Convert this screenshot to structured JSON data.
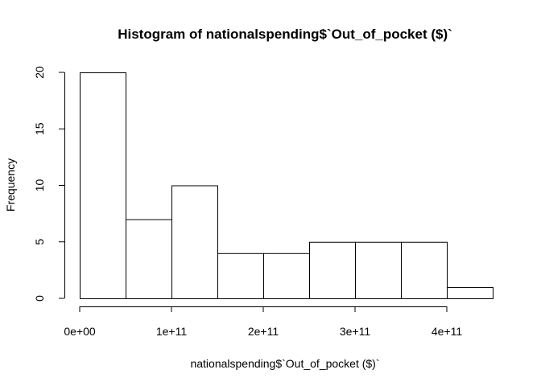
{
  "chart_data": {
    "type": "bar",
    "title": "Histogram of nationalspending$`Out_of_pocket ($)`",
    "xlabel": "nationalspending$`Out_of_pocket ($)`",
    "ylabel": "Frequency",
    "bins": [
      {
        "start": 0,
        "end": 50000000000,
        "count": 20
      },
      {
        "start": 50000000000,
        "end": 100000000000,
        "count": 7
      },
      {
        "start": 100000000000,
        "end": 150000000000,
        "count": 10
      },
      {
        "start": 150000000000,
        "end": 200000000000,
        "count": 4
      },
      {
        "start": 200000000000,
        "end": 250000000000,
        "count": 4
      },
      {
        "start": 250000000000,
        "end": 300000000000,
        "count": 5
      },
      {
        "start": 300000000000,
        "end": 350000000000,
        "count": 5
      },
      {
        "start": 350000000000,
        "end": 400000000000,
        "count": 5
      },
      {
        "start": 400000000000,
        "end": 450000000000,
        "count": 1
      }
    ],
    "xlim": [
      0,
      450000000000
    ],
    "ylim": [
      0,
      20
    ],
    "x_ticks": [
      {
        "value": 0,
        "label": "0e+00"
      },
      {
        "value": 100000000000,
        "label": "1e+11"
      },
      {
        "value": 200000000000,
        "label": "2e+11"
      },
      {
        "value": 300000000000,
        "label": "3e+11"
      },
      {
        "value": 400000000000,
        "label": "4e+11"
      }
    ],
    "y_ticks": [
      {
        "value": 0,
        "label": "0"
      },
      {
        "value": 5,
        "label": "5"
      },
      {
        "value": 10,
        "label": "10"
      },
      {
        "value": 15,
        "label": "15"
      },
      {
        "value": 20,
        "label": "20"
      }
    ],
    "grid": false
  }
}
